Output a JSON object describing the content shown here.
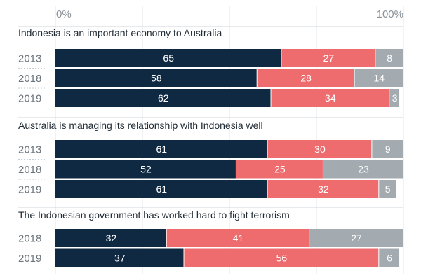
{
  "chart_data": {
    "type": "stacked-bar-horizontal",
    "xlim": [
      0,
      100
    ],
    "axis_ticks": [
      "0%",
      "100%"
    ],
    "grid": true,
    "colors": [
      "#0f2942",
      "#ee6b6e",
      "#a3abb0"
    ],
    "panels": [
      {
        "title": "Indonesia is an important economy to Australia",
        "categories": [
          "2013",
          "2018",
          "2019"
        ],
        "values": [
          [
            65,
            27,
            8
          ],
          [
            58,
            28,
            14
          ],
          [
            62,
            34,
            3
          ]
        ]
      },
      {
        "title": "Australia is managing its relationship with Indonesia well",
        "categories": [
          "2013",
          "2018",
          "2019"
        ],
        "values": [
          [
            61,
            30,
            9
          ],
          [
            52,
            25,
            23
          ],
          [
            61,
            32,
            5
          ]
        ]
      },
      {
        "title": "The Indonesian government has worked hard to fight terrorism",
        "categories": [
          "2018",
          "2019"
        ],
        "values": [
          [
            32,
            41,
            27
          ],
          [
            37,
            56,
            6
          ]
        ]
      }
    ]
  }
}
